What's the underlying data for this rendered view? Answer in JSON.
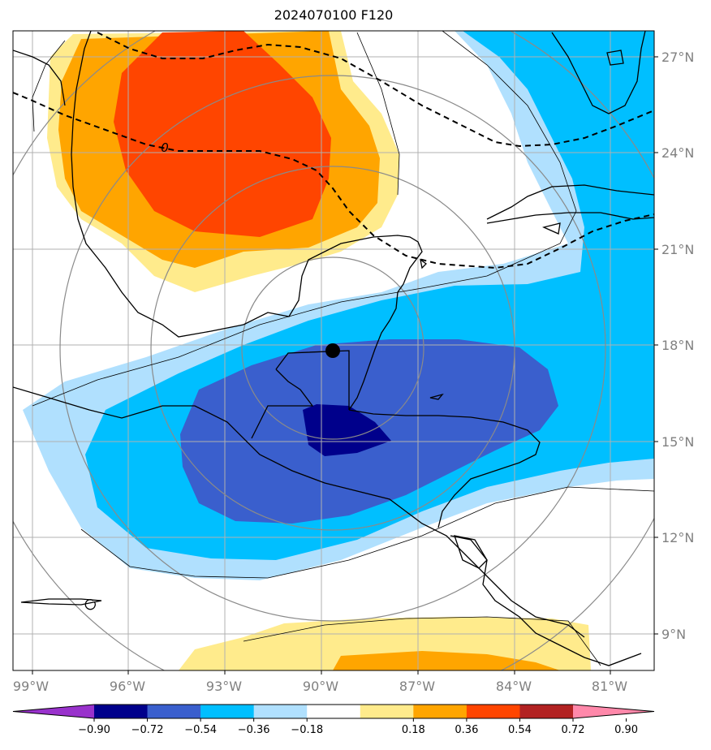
{
  "title": "2024070100 F120",
  "map": {
    "projection": "lat-lon",
    "lon_range": [
      -99.0,
      -80.0
    ],
    "lat_range": [
      7.5,
      27.5
    ],
    "center_marker": {
      "lon": -89.7,
      "lat": 17.8
    },
    "longitude_labels": [
      "99°W",
      "96°W",
      "93°W",
      "90°W",
      "87°W",
      "84°W",
      "81°W"
    ],
    "latitude_labels": [
      "27°N",
      "24°N",
      "21°N",
      "18°N",
      "15°N",
      "12°N",
      "9°N"
    ],
    "gridlines": true,
    "contour_line_label": "0",
    "range_rings": true
  },
  "colorbar": {
    "ticks": [
      "−0.90",
      "−0.72",
      "−0.54",
      "−0.36",
      "−0.18",
      "0.18",
      "0.36",
      "0.54",
      "0.72",
      "0.90"
    ],
    "colors": [
      "#9932cc",
      "#00008b",
      "#3a5fcd",
      "#00bfff",
      "#b0e0fe",
      "#ffffff",
      "#ffeb8c",
      "#ffa500",
      "#ff4500",
      "#b22222",
      "#ff88aa"
    ],
    "extend": "both"
  },
  "colors": {
    "neg_deep": "#00008b",
    "neg_mid": "#3a5fcd",
    "neg_light": "#00bfff",
    "neg_pale": "#b0e0fe",
    "pos_pale": "#ffeb8c",
    "pos_mid": "#ffa500",
    "pos_deep": "#ff4500"
  }
}
